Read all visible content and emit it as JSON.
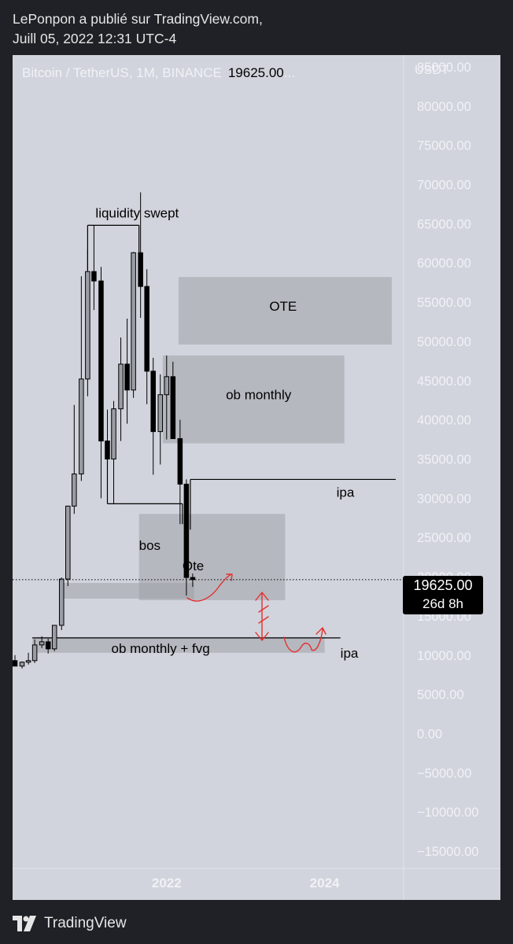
{
  "header": {
    "line1": "LePonpon a publié sur TradingView.com,",
    "line2": "Juill 05, 2022 12:31 UTC-4"
  },
  "footer": {
    "brand": "TradingView"
  },
  "chart_data": {
    "type": "candlestick",
    "title": "Bitcoin / TetherUS, 1M, BINANCE",
    "last_price": "19625.00",
    "legend_suffix": "...",
    "currency": "USDT",
    "countdown": "26d 8h",
    "y_ticks": [
      "85000.00",
      "80000.00",
      "75000.00",
      "70000.00",
      "65000.00",
      "60000.00",
      "55000.00",
      "50000.00",
      "45000.00",
      "40000.00",
      "35000.00",
      "30000.00",
      "25000.00",
      "20000.00",
      "15000.00",
      "10000.00",
      "5000.00",
      "0.00",
      "−5000.00",
      "−10000.00",
      "−15000.00"
    ],
    "y_tick_values": [
      85000,
      80000,
      75000,
      70000,
      65000,
      60000,
      55000,
      50000,
      45000,
      40000,
      35000,
      30000,
      25000,
      20000,
      15000,
      10000,
      5000,
      0,
      -5000,
      -10000,
      -15000
    ],
    "x_ticks": [
      "2022",
      "2024"
    ],
    "x_tick_values": [
      2022.0,
      2024.0
    ],
    "ylim": [
      -17200,
      86500
    ],
    "xlim": [
      2020.05,
      2025.0
    ],
    "candles": [
      {
        "t": 2020.08,
        "o": 9300,
        "h": 10000,
        "l": 8900,
        "c": 8600
      },
      {
        "t": 2020.17,
        "o": 8600,
        "h": 9200,
        "l": 8300,
        "c": 9100
      },
      {
        "t": 2020.25,
        "o": 9100,
        "h": 10300,
        "l": 8800,
        "c": 9300
      },
      {
        "t": 2020.33,
        "o": 9300,
        "h": 12000,
        "l": 9000,
        "c": 11300
      },
      {
        "t": 2020.42,
        "o": 11300,
        "h": 12400,
        "l": 10900,
        "c": 11700
      },
      {
        "t": 2020.5,
        "o": 11700,
        "h": 12100,
        "l": 10200,
        "c": 10800
      },
      {
        "t": 2020.58,
        "o": 10800,
        "h": 13800,
        "l": 10500,
        "c": 13800
      },
      {
        "t": 2020.67,
        "o": 13800,
        "h": 19900,
        "l": 13200,
        "c": 19700
      },
      {
        "t": 2020.75,
        "o": 19700,
        "h": 29000,
        "l": 18800,
        "c": 29000
      },
      {
        "t": 2020.83,
        "o": 29000,
        "h": 41900,
        "l": 28000,
        "c": 33100
      },
      {
        "t": 2020.92,
        "o": 33100,
        "h": 58300,
        "l": 32200,
        "c": 45200
      },
      {
        "t": 2021.0,
        "o": 45200,
        "h": 61700,
        "l": 43000,
        "c": 58900
      },
      {
        "t": 2021.08,
        "o": 58900,
        "h": 64800,
        "l": 54000,
        "c": 57700
      },
      {
        "t": 2021.17,
        "o": 57700,
        "h": 59500,
        "l": 30000,
        "c": 37300
      },
      {
        "t": 2021.25,
        "o": 37300,
        "h": 41300,
        "l": 31100,
        "c": 35000
      },
      {
        "t": 2021.33,
        "o": 35000,
        "h": 42400,
        "l": 29300,
        "c": 41400
      },
      {
        "t": 2021.42,
        "o": 41400,
        "h": 50500,
        "l": 37300,
        "c": 47100
      },
      {
        "t": 2021.5,
        "o": 47100,
        "h": 52900,
        "l": 39500,
        "c": 43800
      },
      {
        "t": 2021.58,
        "o": 43800,
        "h": 61400,
        "l": 42800,
        "c": 61300
      },
      {
        "t": 2021.67,
        "o": 61300,
        "h": 69000,
        "l": 53000,
        "c": 57000
      },
      {
        "t": 2021.75,
        "o": 57000,
        "h": 59200,
        "l": 42000,
        "c": 46200
      },
      {
        "t": 2021.83,
        "o": 46200,
        "h": 47900,
        "l": 33000,
        "c": 38500
      },
      {
        "t": 2021.92,
        "o": 38500,
        "h": 45800,
        "l": 34300,
        "c": 43200
      },
      {
        "t": 2022.0,
        "o": 43200,
        "h": 48200,
        "l": 37500,
        "c": 45500
      },
      {
        "t": 2022.08,
        "o": 45500,
        "h": 47400,
        "l": 37700,
        "c": 37600
      },
      {
        "t": 2022.17,
        "o": 37600,
        "h": 40000,
        "l": 26700,
        "c": 31800
      },
      {
        "t": 2022.25,
        "o": 31800,
        "h": 32400,
        "l": 17600,
        "c": 19900
      },
      {
        "t": 2022.33,
        "o": 19900,
        "h": 20400,
        "l": 18700,
        "c": 19625
      }
    ],
    "zones": [
      {
        "label": "OTE",
        "x0": 2022.15,
        "x1": 2024.85,
        "y0": 49600,
        "y1": 58200
      },
      {
        "label": "ob monthly",
        "x0": 2021.95,
        "x1": 2024.25,
        "y0": 37000,
        "y1": 48200
      },
      {
        "label": "Ote",
        "x0": 2021.65,
        "x1": 2023.5,
        "y0": 17000,
        "y1": 28000
      },
      {
        "label": "",
        "x0": 2020.65,
        "x1": 2022.35,
        "y0": 17200,
        "y1": 19200
      },
      {
        "label": "ob monthly + fvg",
        "x0": 2020.3,
        "x1": 2024.0,
        "y0": 10300,
        "y1": 12300
      }
    ],
    "levels": [
      {
        "label": "liquidity swept",
        "x0": 2021.0,
        "x1": 2021.65,
        "y": 64800
      },
      {
        "label": "bos",
        "x0": 2021.25,
        "x1": 2022.2,
        "y": 29300
      },
      {
        "label": "ipa",
        "x0": 2022.3,
        "x1": 2024.9,
        "y": 32400
      },
      {
        "label": "ipa",
        "x0": 2020.3,
        "x1": 2024.2,
        "y": 12200
      }
    ],
    "annotations": [
      {
        "text": "liquidity swept",
        "x": 2021.1,
        "y": 65800
      },
      {
        "text": "ob monthly",
        "x": 2022.75,
        "y": 42600
      },
      {
        "text": "OTE",
        "x": 2023.3,
        "y": 53900
      },
      {
        "text": "ipa",
        "x": 2024.15,
        "y": 30200
      },
      {
        "text": "bos",
        "x": 2021.65,
        "y": 23400
      },
      {
        "text": "Ote",
        "x": 2022.2,
        "y": 20800
      },
      {
        "text": "ob monthly + fvg",
        "x": 2021.3,
        "y": 10300
      },
      {
        "text": "ipa",
        "x": 2024.2,
        "y": 9700
      }
    ]
  }
}
